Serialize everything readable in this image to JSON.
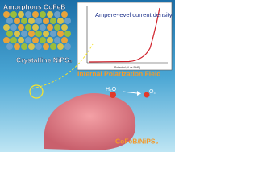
{
  "labels": {
    "amorphous": "Amorphous CoFeB",
    "crystalline": "Crystalline NiPS₃",
    "inset_text": "Ampere-level current density",
    "inset_x_label": "Potential (V vs RHE)",
    "field": "Internal Polarization Field",
    "reactant": "H₂O",
    "product": "O₂",
    "catalyst": "CoFeB/NiPS₃"
  }
}
